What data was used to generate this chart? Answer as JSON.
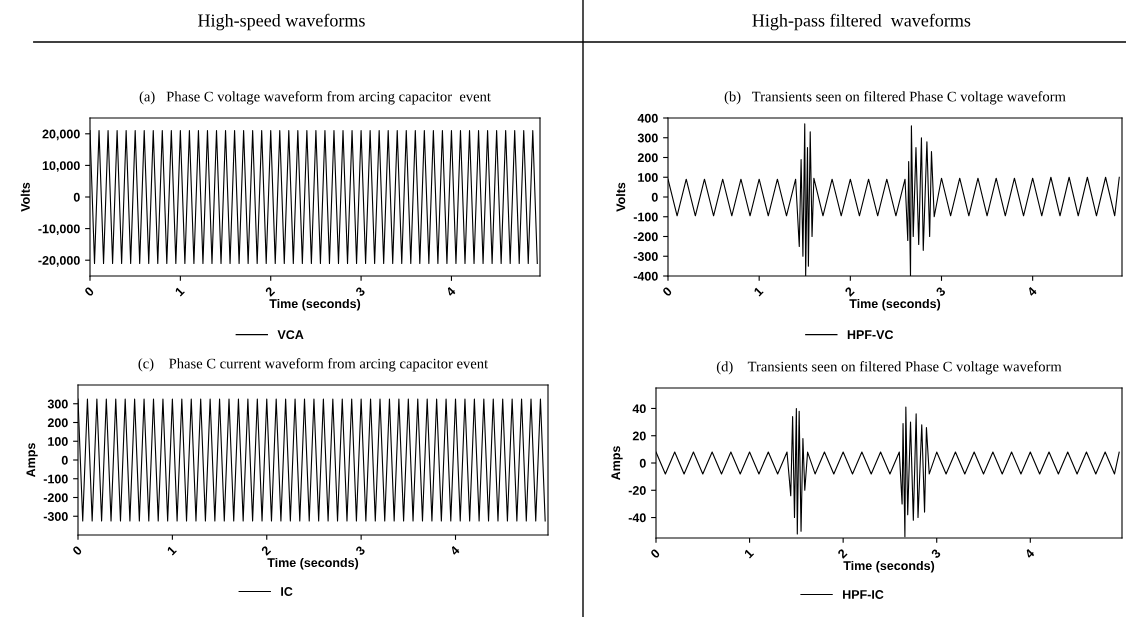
{
  "chart_data": [
    {
      "type": "line",
      "title": "(a)   Phase C voltage waveform from arcing capacitor  event",
      "xlabel": "Time (seconds)",
      "ylabel": "Volts",
      "annotations": [
        "High-speed waveforms"
      ],
      "legend": "bottom",
      "xlim": [
        0,
        4.98
      ],
      "xticks": [
        0,
        1,
        2,
        3,
        4
      ],
      "ylim": [
        -25000,
        25000
      ],
      "yticks": [
        {
          "value": -20000,
          "label": "-20,000"
        },
        {
          "value": -10000,
          "label": "-10,000"
        },
        0,
        {
          "value": 10000,
          "label": "10,000"
        },
        {
          "value": 20000,
          "label": "20,000"
        }
      ],
      "x": [
        0,
        0.05,
        0.1,
        0.15,
        0.2,
        0.25,
        0.3,
        0.35,
        0.4,
        0.45,
        0.5,
        0.55,
        0.6,
        0.65,
        0.7,
        0.75,
        0.8,
        0.85,
        0.9,
        0.95,
        1.0,
        1.05,
        1.1,
        1.15,
        1.2,
        1.25,
        1.3,
        1.35,
        1.4,
        1.45,
        1.5,
        1.55,
        1.6,
        1.65,
        1.7,
        1.75,
        1.8,
        1.85,
        1.9,
        1.95,
        2.0,
        2.05,
        2.1,
        2.15,
        2.2,
        2.25,
        2.3,
        2.35,
        2.4,
        2.45,
        2.5,
        2.55,
        2.6,
        2.65,
        2.7,
        2.75,
        2.8,
        2.85,
        2.9,
        2.95,
        3.0,
        3.05,
        3.1,
        3.15,
        3.2,
        3.25,
        3.3,
        3.35,
        3.4,
        3.45,
        3.5,
        3.55,
        3.6,
        3.65,
        3.7,
        3.75,
        3.8,
        3.85,
        3.9,
        3.95,
        4.0,
        4.05,
        4.1,
        4.15,
        4.2,
        4.25,
        4.3,
        4.35,
        4.4,
        4.45,
        4.5,
        4.55,
        4.6,
        4.65,
        4.7,
        4.75,
        4.8,
        4.85,
        4.9,
        4.95
      ],
      "series": [
        {
          "name": "VCA",
          "color": "#000000",
          "values": [
            21000,
            -21000,
            21000,
            -21000,
            21000,
            -21000,
            21000,
            -21000,
            21000,
            -21000,
            21000,
            -21000,
            21000,
            -21000,
            21000,
            -21000,
            21000,
            -21000,
            21000,
            -21000,
            21000,
            -21000,
            21000,
            -21000,
            21000,
            -21000,
            21000,
            -21000,
            21000,
            -21000,
            21000,
            -21000,
            21000,
            -21000,
            21000,
            -21000,
            21000,
            -21000,
            21000,
            -21000,
            21000,
            -21000,
            21000,
            -21000,
            21000,
            -21000,
            21000,
            -21000,
            21000,
            -21000,
            21000,
            -21000,
            21000,
            -21000,
            21000,
            -21000,
            21000,
            -21000,
            21000,
            -21000,
            21000,
            -21000,
            21000,
            -21000,
            21000,
            -21000,
            21000,
            -21000,
            21000,
            -21000,
            21000,
            -21000,
            21000,
            -21000,
            21000,
            -21000,
            21000,
            -21000,
            21000,
            -21000,
            21000,
            -21000,
            21000,
            -21000,
            21000,
            -21000,
            21000,
            -21000,
            21000,
            -21000,
            21000,
            -21000,
            21000,
            -21000,
            21000,
            -21000,
            21000,
            -21000,
            21000,
            -21000
          ]
        }
      ]
    },
    {
      "type": "line",
      "title": "(b)   Transients seen on filtered Phase C voltage waveform",
      "xlabel": "Time (seconds)",
      "ylabel": "Volts",
      "annotations": [
        "High-pass filtered  waveforms"
      ],
      "legend": "bottom",
      "xlim": [
        0,
        4.98
      ],
      "xticks": [
        0,
        1,
        2,
        3,
        4
      ],
      "ylim": [
        -400,
        400
      ],
      "yticks": [
        -400,
        -300,
        -200,
        -100,
        0,
        100,
        200,
        300,
        400
      ],
      "x": [
        0,
        0.1,
        0.2,
        0.3,
        0.4,
        0.5,
        0.6,
        0.7,
        0.8,
        0.9,
        1.0,
        1.1,
        1.2,
        1.3,
        1.4,
        1.44,
        1.46,
        1.48,
        1.5,
        1.51,
        1.53,
        1.54,
        1.56,
        1.58,
        1.6,
        1.7,
        1.8,
        1.9,
        2.0,
        2.1,
        2.2,
        2.3,
        2.4,
        2.5,
        2.6,
        2.63,
        2.64,
        2.66,
        2.67,
        2.69,
        2.72,
        2.75,
        2.78,
        2.8,
        2.84,
        2.87,
        2.89,
        2.92,
        3.0,
        3.1,
        3.2,
        3.3,
        3.4,
        3.5,
        3.6,
        3.7,
        3.8,
        3.9,
        4.0,
        4.1,
        4.2,
        4.3,
        4.4,
        4.5,
        4.6,
        4.7,
        4.8,
        4.9,
        4.95
      ],
      "series": [
        {
          "name": "HPF-VC",
          "color": "#000000",
          "values": [
            90,
            -95,
            90,
            -95,
            90,
            -95,
            90,
            -95,
            90,
            -95,
            90,
            -95,
            90,
            -95,
            90,
            -250,
            190,
            -300,
            370,
            -400,
            250,
            -350,
            330,
            -200,
            95,
            -95,
            90,
            -95,
            90,
            -95,
            90,
            -95,
            90,
            -95,
            90,
            -220,
            180,
            -400,
            360,
            -200,
            250,
            -240,
            300,
            -270,
            280,
            -200,
            230,
            -100,
            95,
            -95,
            95,
            -95,
            95,
            -95,
            95,
            -95,
            95,
            -95,
            95,
            -95,
            100,
            -95,
            100,
            -95,
            100,
            -95,
            100,
            -95,
            100
          ]
        }
      ]
    },
    {
      "type": "line",
      "title": "(c)    Phase C current waveform from arcing capacitor event",
      "xlabel": "Time (seconds)",
      "ylabel": "Amps",
      "legend": "bottom",
      "xlim": [
        0,
        4.98
      ],
      "xticks": [
        0,
        1,
        2,
        3,
        4
      ],
      "ylim": [
        -400,
        400
      ],
      "yticks": [
        -300,
        -200,
        -100,
        0,
        100,
        200,
        300
      ],
      "x": [
        0,
        0.05,
        0.1,
        0.15,
        0.2,
        0.25,
        0.3,
        0.35,
        0.4,
        0.45,
        0.5,
        0.55,
        0.6,
        0.65,
        0.7,
        0.75,
        0.8,
        0.85,
        0.9,
        0.95,
        1.0,
        1.05,
        1.1,
        1.15,
        1.2,
        1.25,
        1.3,
        1.35,
        1.4,
        1.45,
        1.5,
        1.55,
        1.6,
        1.65,
        1.7,
        1.75,
        1.8,
        1.85,
        1.9,
        1.95,
        2.0,
        2.05,
        2.1,
        2.15,
        2.2,
        2.25,
        2.3,
        2.35,
        2.4,
        2.45,
        2.5,
        2.55,
        2.6,
        2.65,
        2.7,
        2.75,
        2.8,
        2.85,
        2.9,
        2.95,
        3.0,
        3.05,
        3.1,
        3.15,
        3.2,
        3.25,
        3.3,
        3.35,
        3.4,
        3.45,
        3.5,
        3.55,
        3.6,
        3.65,
        3.7,
        3.75,
        3.8,
        3.85,
        3.9,
        3.95,
        4.0,
        4.05,
        4.1,
        4.15,
        4.2,
        4.25,
        4.3,
        4.35,
        4.4,
        4.45,
        4.5,
        4.55,
        4.6,
        4.65,
        4.7,
        4.75,
        4.8,
        4.85,
        4.9,
        4.95
      ],
      "series": [
        {
          "name": "IC",
          "color": "#000000",
          "values": [
            325,
            -325,
            325,
            -325,
            325,
            -325,
            325,
            -325,
            325,
            -325,
            325,
            -325,
            325,
            -325,
            325,
            -325,
            325,
            -325,
            325,
            -325,
            325,
            -325,
            325,
            -325,
            325,
            -325,
            325,
            -325,
            325,
            -325,
            325,
            -325,
            325,
            -325,
            325,
            -325,
            325,
            -325,
            325,
            -325,
            325,
            -325,
            325,
            -325,
            325,
            -325,
            325,
            -325,
            325,
            -325,
            325,
            -325,
            325,
            -325,
            325,
            -325,
            325,
            -325,
            325,
            -325,
            325,
            -325,
            325,
            -325,
            325,
            -325,
            325,
            -325,
            325,
            -325,
            325,
            -325,
            325,
            -325,
            325,
            -325,
            325,
            -325,
            325,
            -325,
            325,
            -325,
            325,
            -325,
            325,
            -325,
            325,
            -325,
            325,
            -325,
            325,
            -325,
            325,
            -325,
            325,
            -325,
            325,
            -325,
            325,
            -325
          ]
        }
      ]
    },
    {
      "type": "line",
      "title": "(d)    Transients seen on filtered Phase C voltage waveform",
      "xlabel": "Time (seconds)",
      "ylabel": "Amps",
      "legend": "bottom",
      "xlim": [
        0,
        4.98
      ],
      "xticks": [
        0,
        1,
        2,
        3,
        4
      ],
      "ylim": [
        -55,
        55
      ],
      "yticks": [
        -40,
        -20,
        0,
        20,
        40
      ],
      "x": [
        0,
        0.1,
        0.2,
        0.3,
        0.4,
        0.5,
        0.6,
        0.7,
        0.8,
        0.9,
        1.0,
        1.1,
        1.2,
        1.3,
        1.4,
        1.44,
        1.46,
        1.48,
        1.5,
        1.51,
        1.53,
        1.55,
        1.57,
        1.59,
        1.62,
        1.7,
        1.8,
        1.9,
        2.0,
        2.1,
        2.2,
        2.3,
        2.4,
        2.5,
        2.6,
        2.63,
        2.64,
        2.66,
        2.67,
        2.69,
        2.72,
        2.75,
        2.78,
        2.8,
        2.84,
        2.87,
        2.89,
        2.92,
        3.0,
        3.1,
        3.2,
        3.3,
        3.4,
        3.5,
        3.6,
        3.7,
        3.8,
        3.9,
        4.0,
        4.1,
        4.2,
        4.3,
        4.4,
        4.5,
        4.6,
        4.7,
        4.8,
        4.9,
        4.95
      ],
      "series": [
        {
          "name": "HPF-IC",
          "color": "#000000",
          "values": [
            8,
            -8,
            8,
            -8,
            8,
            -8,
            8,
            -8,
            8,
            -8,
            8,
            -8,
            8,
            -8,
            8,
            -24,
            34,
            -40,
            40,
            -52,
            38,
            -50,
            18,
            -20,
            8,
            -8,
            8,
            -8,
            8,
            -8,
            8,
            -8,
            8,
            -8,
            8,
            -30,
            29,
            -54,
            41,
            -38,
            30,
            -42,
            36,
            -40,
            28,
            -36,
            26,
            -8,
            8,
            -8,
            8,
            -8,
            8,
            -8,
            8,
            -8,
            8,
            -8,
            8,
            -8,
            8,
            -8,
            8,
            -8,
            8,
            -8,
            8,
            -8,
            8
          ]
        }
      ]
    }
  ]
}
